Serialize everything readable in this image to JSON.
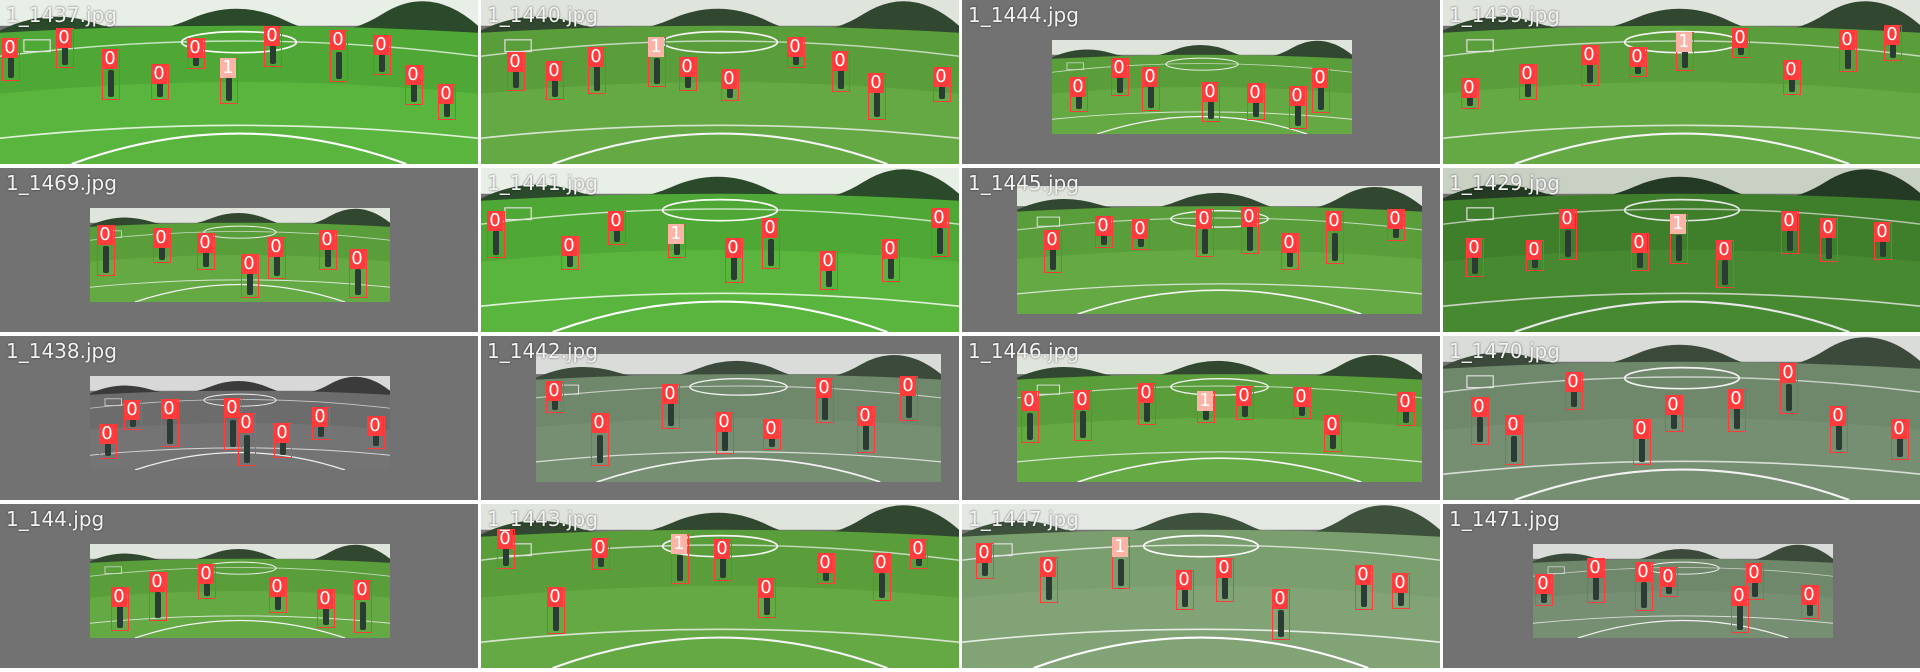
{
  "grid": {
    "tiles": [
      {
        "filename": "1_1437.jpg",
        "tone": "vivid",
        "frame": "full",
        "labels": [
          "0",
          "0",
          "0",
          "0",
          "0",
          "1",
          "0",
          "0",
          "0",
          "0",
          "0"
        ]
      },
      {
        "filename": "1_1440.jpg",
        "tone": "green",
        "frame": "full",
        "labels": [
          "0",
          "0",
          "0",
          "1",
          "0",
          "0",
          "0",
          "0",
          "0",
          "0"
        ]
      },
      {
        "filename": "1_1444.jpg",
        "tone": "green",
        "frame": "small",
        "labels": [
          "0",
          "0",
          "0",
          "0",
          "0",
          "0",
          "0"
        ]
      },
      {
        "filename": "1_1439.jpg",
        "tone": "green",
        "frame": "full",
        "labels": [
          "0",
          "0",
          "0",
          "0",
          "1",
          "0",
          "0",
          "0",
          "0"
        ]
      },
      {
        "filename": "1_1469.jpg",
        "tone": "green",
        "frame": "small",
        "labels": [
          "0",
          "0",
          "0",
          "0",
          "0",
          "0",
          "0"
        ]
      },
      {
        "filename": "1_1441.jpg",
        "tone": "vivid",
        "frame": "full",
        "labels": [
          "0",
          "0",
          "0",
          "1",
          "0",
          "0",
          "0",
          "0",
          "0"
        ]
      },
      {
        "filename": "1_1445.jpg",
        "tone": "green",
        "frame": "wide",
        "labels": [
          "0",
          "0",
          "0",
          "0",
          "0",
          "0",
          "0",
          "0"
        ]
      },
      {
        "filename": "1_1429.jpg",
        "tone": "dark",
        "frame": "full",
        "labels": [
          "0",
          "0",
          "0",
          "0",
          "1",
          "0",
          "0",
          "0",
          "0"
        ]
      },
      {
        "filename": "1_1438.jpg",
        "tone": "gray",
        "frame": "small",
        "labels": [
          "0",
          "0",
          "0",
          "0",
          "0",
          "0",
          "0",
          "0"
        ]
      },
      {
        "filename": "1_1442.jpg",
        "tone": "muted",
        "frame": "wide",
        "labels": [
          "0",
          "0",
          "0",
          "0",
          "0",
          "0",
          "0",
          "0"
        ]
      },
      {
        "filename": "1_1446.jpg",
        "tone": "green",
        "frame": "wide",
        "labels": [
          "0",
          "0",
          "0",
          "1",
          "0",
          "0",
          "0",
          "0"
        ]
      },
      {
        "filename": "1_1470.jpg",
        "tone": "muted",
        "frame": "full",
        "labels": [
          "0",
          "0",
          "0",
          "0",
          "0",
          "0",
          "0",
          "0",
          "0"
        ]
      },
      {
        "filename": "1_144.jpg",
        "tone": "green",
        "frame": "small",
        "labels": [
          "0",
          "0",
          "0",
          "0",
          "0",
          "0"
        ]
      },
      {
        "filename": "1_1443.jpg",
        "tone": "green",
        "frame": "full",
        "labels": [
          "0",
          "0",
          "0",
          "1",
          "0",
          "0",
          "0",
          "0",
          "0"
        ]
      },
      {
        "filename": "1_1447.jpg",
        "tone": "light",
        "frame": "full",
        "labels": [
          "0",
          "0",
          "1",
          "0",
          "0",
          "0",
          "0",
          "0"
        ]
      },
      {
        "filename": "1_1471.jpg",
        "tone": "muted",
        "frame": "small",
        "labels": [
          "0",
          "0",
          "0",
          "0",
          "0",
          "0",
          "0"
        ]
      }
    ]
  },
  "colors": {
    "box": "#ff3b3b",
    "class_0": "#ff3b3b",
    "class_1": "#ffb2a6",
    "tile_background": "#727272",
    "separator": "#ffffff"
  }
}
